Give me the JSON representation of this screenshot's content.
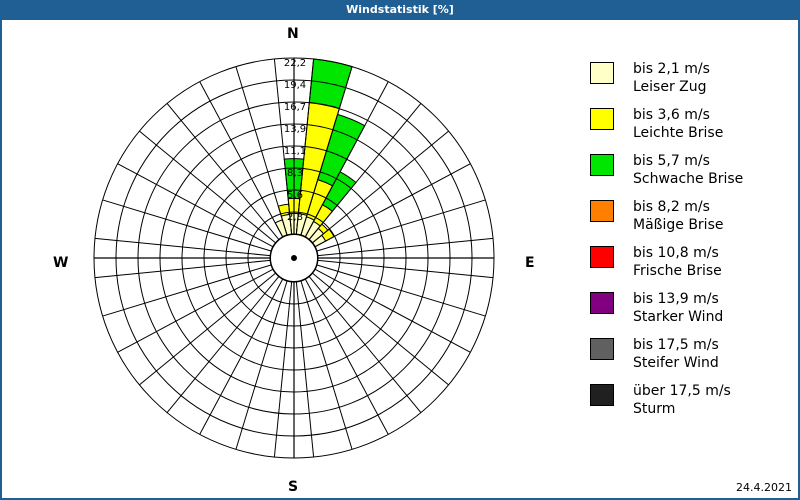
{
  "window": {
    "title": "Windstatistik [%]"
  },
  "footer": {
    "date": "24.4.2021"
  },
  "compass": {
    "n": "N",
    "e": "E",
    "s": "S",
    "w": "W"
  },
  "legend": [
    {
      "range": "bis 2,1 m/s",
      "name": "Leiser Zug",
      "color": "#ffffc8"
    },
    {
      "range": "bis 3,6 m/s",
      "name": "Leichte Brise",
      "color": "#ffff00"
    },
    {
      "range": "bis 5,7 m/s",
      "name": "Schwache Brise",
      "color": "#00e600"
    },
    {
      "range": "bis 8,2 m/s",
      "name": "Mäßige Brise",
      "color": "#ff8000"
    },
    {
      "range": "bis 10,8 m/s",
      "name": "Frische Brise",
      "color": "#ff0000"
    },
    {
      "range": "bis 13,9 m/s",
      "name": "Starker Wind",
      "color": "#800080"
    },
    {
      "range": "bis 17,5 m/s",
      "name": "Steifer Wind",
      "color": "#606060"
    },
    {
      "range": "über 17,5 m/s",
      "name": "Sturm",
      "color": "#202020"
    }
  ],
  "chart_data": {
    "type": "wind-rose",
    "title": "Windstatistik [%]",
    "unit": "%",
    "sectors": 32,
    "sector_width_deg": 11.25,
    "ring_labels": [
      "2,8",
      "5,6",
      "8,3",
      "11,1",
      "13,9",
      "16,7",
      "19,4",
      "22,2"
    ],
    "rmax": 22.2,
    "series_names": [
      "bis 2,1 m/s",
      "bis 3,6 m/s",
      "bis 5,7 m/s",
      "bis 8,2 m/s",
      "bis 10,8 m/s",
      "bis 13,9 m/s",
      "bis 17,5 m/s",
      "über 17,5 m/s"
    ],
    "cumulative_by_direction": [
      {
        "dir_deg": -22.5,
        "values": [
          2.0,
          2.0,
          2.0
        ]
      },
      {
        "dir_deg": -11.25,
        "values": [
          2.5,
          3.8,
          3.8
        ]
      },
      {
        "dir_deg": 0,
        "values": [
          2.6,
          4.5,
          9.5
        ]
      },
      {
        "dir_deg": 11.25,
        "values": [
          2.6,
          16.7,
          22.2
        ]
      },
      {
        "dir_deg": 22.5,
        "values": [
          2.4,
          7.3,
          15.9
        ]
      },
      {
        "dir_deg": 33.75,
        "values": [
          2.2,
          4.6,
          9.3
        ]
      },
      {
        "dir_deg": 45,
        "values": [
          1.8,
          2.5,
          2.5
        ]
      },
      {
        "dir_deg": 56.25,
        "values": [
          1.5,
          2.7,
          2.7
        ]
      }
    ],
    "legend_position": "right",
    "grid": true
  }
}
